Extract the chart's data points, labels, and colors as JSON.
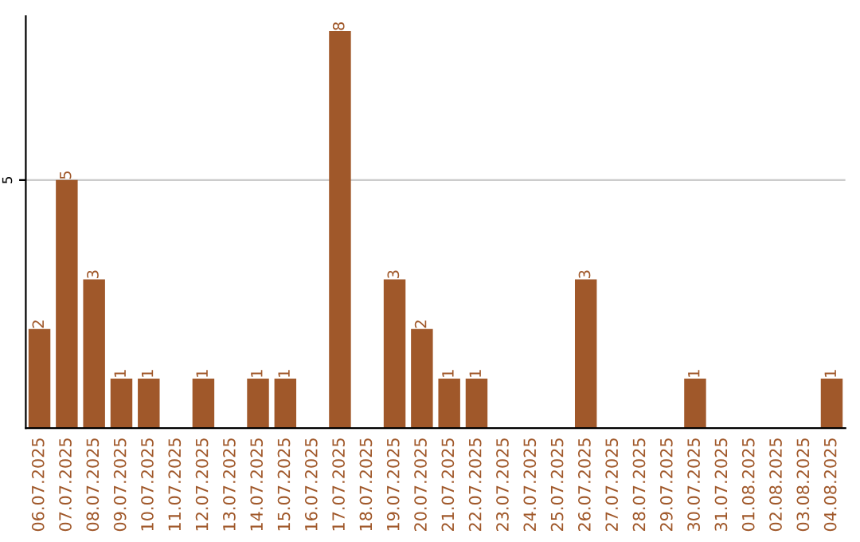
{
  "chart_data": {
    "type": "bar",
    "categories": [
      "06.07.2025",
      "07.07.2025",
      "08.07.2025",
      "09.07.2025",
      "10.07.2025",
      "11.07.2025",
      "12.07.2025",
      "13.07.2025",
      "14.07.2025",
      "15.07.2025",
      "16.07.2025",
      "17.07.2025",
      "18.07.2025",
      "19.07.2025",
      "20.07.2025",
      "21.07.2025",
      "22.07.2025",
      "23.07.2025",
      "24.07.2025",
      "25.07.2025",
      "26.07.2025",
      "27.07.2025",
      "28.07.2025",
      "29.07.2025",
      "30.07.2025",
      "31.07.2025",
      "01.08.2025",
      "02.08.2025",
      "03.08.2025",
      "04.08.2025"
    ],
    "values": [
      2,
      5,
      3,
      1,
      1,
      0,
      1,
      0,
      1,
      1,
      0,
      8,
      0,
      3,
      2,
      1,
      1,
      0,
      0,
      0,
      3,
      0,
      0,
      0,
      1,
      0,
      0,
      0,
      0,
      1
    ],
    "value_labels": [
      "2",
      "5",
      "3",
      "1",
      "1",
      null,
      "1",
      null,
      "1",
      "1",
      null,
      "8",
      null,
      "3",
      "2",
      "1",
      "1",
      null,
      null,
      null,
      "3",
      null,
      null,
      null,
      "1",
      null,
      null,
      null,
      null,
      "1"
    ],
    "color": "#a0582a",
    "ylim": [
      0,
      8.3
    ],
    "yticks": [
      5
    ],
    "grid": "y"
  }
}
